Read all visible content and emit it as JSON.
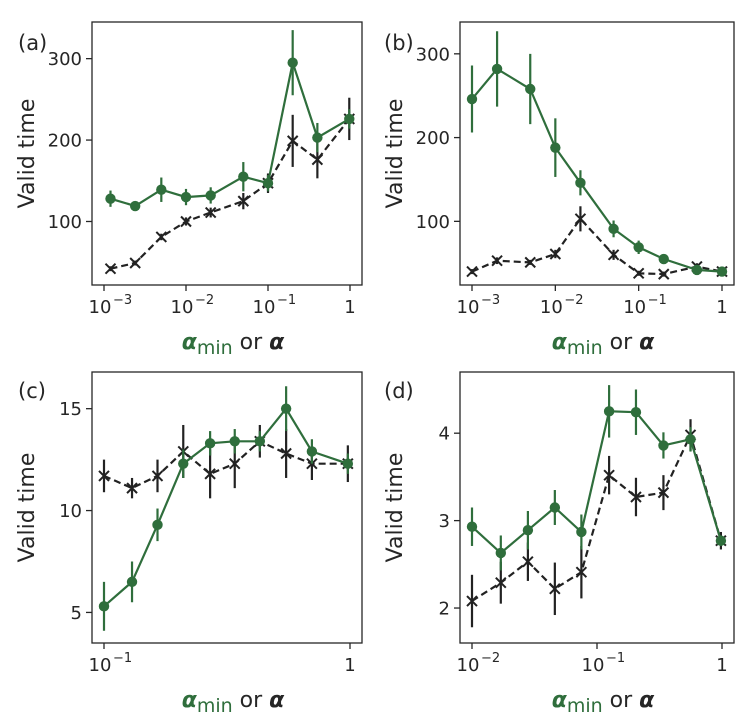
{
  "colors": {
    "green": "#2f6e3c",
    "black": "#222222",
    "axis": "#262626"
  },
  "xlabel": {
    "part1": "α",
    "part1_sub": "min",
    "connector": " or ",
    "part2": "α"
  },
  "ylabel": "Valid time",
  "chart_data": [
    {
      "panel": "(a)",
      "type": "line",
      "x_scale": "log",
      "xlim": [
        0.001,
        1
      ],
      "ylim": [
        22,
        345
      ],
      "xticks": [
        {
          "v": 0.001,
          "base": "10",
          "exp": "−3"
        },
        {
          "v": 0.01,
          "base": "10",
          "exp": "−2"
        },
        {
          "v": 0.1,
          "base": "10",
          "exp": "−1"
        },
        {
          "v": 1,
          "base": "1",
          "exp": ""
        }
      ],
      "yticks": [
        100,
        200,
        300
      ],
      "series": [
        {
          "style": "solid-circle",
          "x": [
            0.0012,
            0.0024,
            0.005,
            0.01,
            0.02,
            0.05,
            0.1,
            0.2,
            0.4,
            0.98
          ],
          "y": [
            128,
            119,
            139,
            130,
            132,
            155,
            147,
            295,
            203,
            226
          ],
          "err": [
            10,
            5,
            15,
            10,
            10,
            18,
            10,
            40,
            18,
            12
          ]
        },
        {
          "style": "dashed-x",
          "x": [
            0.0012,
            0.0024,
            0.005,
            0.01,
            0.02,
            0.05,
            0.1,
            0.2,
            0.4,
            0.98
          ],
          "y": [
            42,
            49,
            81,
            100,
            111,
            125,
            147,
            199,
            176,
            226
          ],
          "err": [
            3,
            3,
            4,
            5,
            6,
            10,
            12,
            32,
            23,
            26
          ]
        }
      ]
    },
    {
      "panel": "(b)",
      "type": "line",
      "x_scale": "log",
      "xlim": [
        0.001,
        1
      ],
      "ylim": [
        24,
        338
      ],
      "xticks": [
        {
          "v": 0.001,
          "base": "10",
          "exp": "−3"
        },
        {
          "v": 0.01,
          "base": "10",
          "exp": "−2"
        },
        {
          "v": 0.1,
          "base": "10",
          "exp": "−1"
        },
        {
          "v": 1,
          "base": "1",
          "exp": ""
        }
      ],
      "yticks": [
        100,
        200,
        300
      ],
      "series": [
        {
          "style": "solid-circle",
          "x": [
            0.001,
            0.002,
            0.005,
            0.01,
            0.02,
            0.05,
            0.1,
            0.2,
            0.5,
            1
          ],
          "y": [
            246,
            282,
            258,
            188,
            146,
            91,
            69,
            55,
            42,
            40
          ],
          "err": [
            40,
            45,
            42,
            35,
            15,
            10,
            8,
            4,
            3,
            3
          ]
        },
        {
          "style": "dashed-x",
          "x": [
            0.001,
            0.002,
            0.005,
            0.01,
            0.02,
            0.05,
            0.1,
            0.2,
            0.5,
            1
          ],
          "y": [
            40,
            53,
            51,
            61,
            103,
            60,
            38,
            37,
            46,
            40
          ],
          "err": [
            3,
            4,
            3,
            5,
            15,
            6,
            3,
            3,
            4,
            3
          ]
        }
      ]
    },
    {
      "panel": "(c)",
      "type": "line",
      "x_scale": "log",
      "xlim": [
        0.1,
        1
      ],
      "ylim": [
        3.5,
        16.8
      ],
      "xticks": [
        {
          "v": 0.1,
          "base": "10",
          "exp": "−1"
        },
        {
          "v": 1,
          "base": "1",
          "exp": ""
        }
      ],
      "yticks": [
        5,
        10,
        15
      ],
      "series": [
        {
          "style": "solid-circle",
          "x": [
            0.1,
            0.13,
            0.165,
            0.21,
            0.27,
            0.34,
            0.43,
            0.55,
            0.7,
            0.98
          ],
          "y": [
            5.3,
            6.5,
            9.3,
            12.3,
            13.3,
            13.4,
            13.4,
            15.0,
            12.9,
            12.3
          ],
          "err": [
            1.2,
            1.0,
            0.8,
            0.7,
            0.6,
            0.6,
            0.5,
            1.1,
            0.6,
            0.5
          ]
        },
        {
          "style": "dashed-x",
          "x": [
            0.1,
            0.13,
            0.165,
            0.21,
            0.27,
            0.34,
            0.43,
            0.55,
            0.7,
            0.98
          ],
          "y": [
            11.7,
            11.1,
            11.7,
            12.9,
            11.8,
            12.3,
            13.4,
            12.8,
            12.3,
            12.3
          ],
          "err": [
            0.8,
            0.5,
            0.8,
            1.3,
            1.2,
            1.2,
            0.8,
            1.2,
            0.8,
            0.9
          ]
        }
      ]
    },
    {
      "panel": "(d)",
      "type": "line",
      "x_scale": "log",
      "xlim": [
        0.01,
        1
      ],
      "ylim": [
        1.6,
        4.7
      ],
      "xticks": [
        {
          "v": 0.01,
          "base": "10",
          "exp": "−2"
        },
        {
          "v": 0.1,
          "base": "10",
          "exp": "−1"
        },
        {
          "v": 1,
          "base": "1",
          "exp": ""
        }
      ],
      "yticks": [
        2,
        3,
        4
      ],
      "series": [
        {
          "style": "solid-circle",
          "x": [
            0.01,
            0.017,
            0.028,
            0.046,
            0.075,
            0.125,
            0.205,
            0.34,
            0.56,
            0.98
          ],
          "y": [
            2.93,
            2.63,
            2.89,
            3.15,
            2.87,
            4.25,
            4.24,
            3.86,
            3.93,
            2.77
          ],
          "err": [
            0.22,
            0.2,
            0.22,
            0.2,
            0.2,
            0.3,
            0.26,
            0.15,
            0.14,
            0.06
          ]
        },
        {
          "style": "dashed-x",
          "x": [
            0.01,
            0.017,
            0.028,
            0.046,
            0.075,
            0.125,
            0.205,
            0.34,
            0.56,
            0.98
          ],
          "y": [
            2.08,
            2.29,
            2.53,
            2.22,
            2.41,
            3.52,
            3.27,
            3.32,
            3.98,
            2.77
          ],
          "err": [
            0.3,
            0.24,
            0.22,
            0.3,
            0.3,
            0.22,
            0.22,
            0.2,
            0.18,
            0.1
          ]
        }
      ]
    }
  ]
}
